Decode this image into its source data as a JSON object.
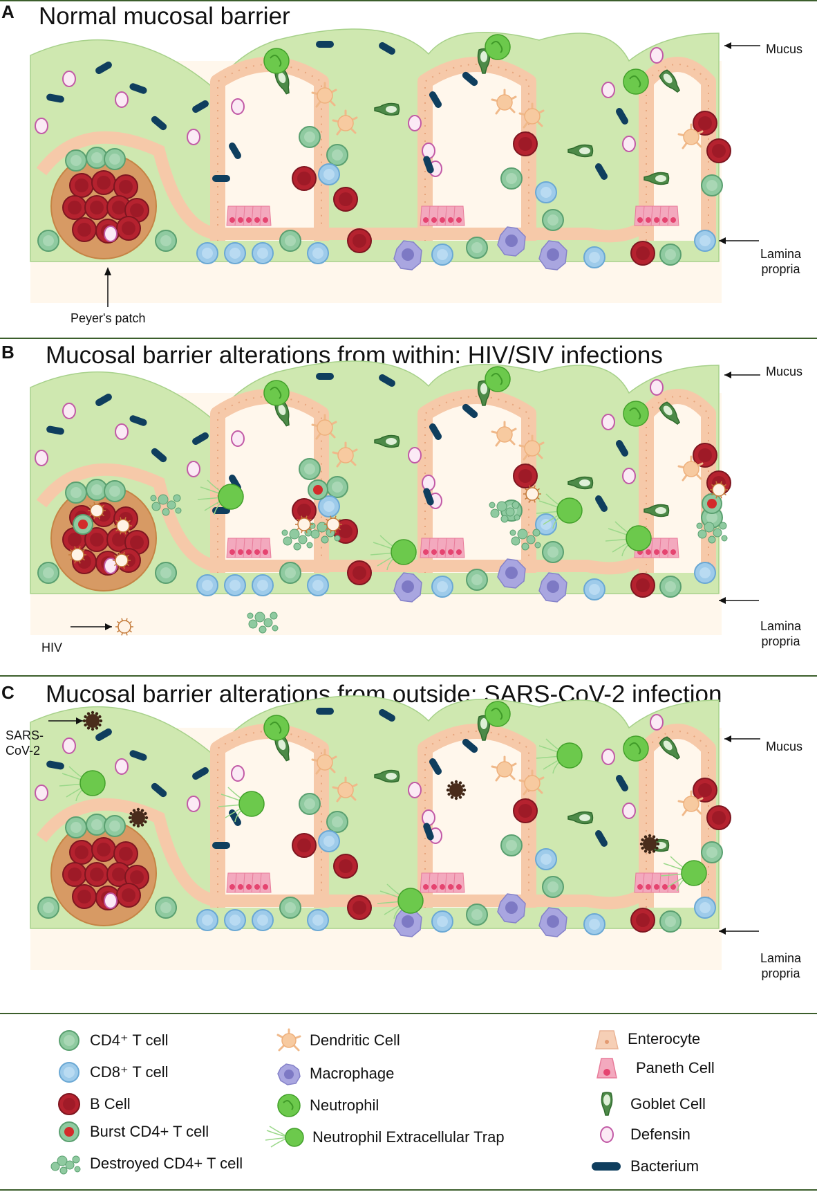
{
  "panels": [
    {
      "letter": "A",
      "title": "Normal mucosal barrier",
      "labels": {
        "mucus": "Mucus",
        "lamina1": "Lamina",
        "lamina2": "propria",
        "extra": "Peyer's patch"
      }
    },
    {
      "letter": "B",
      "title": "Mucosal barrier alterations from within: HIV/SIV infections",
      "labels": {
        "mucus": "Mucus",
        "lamina1": "Lamina",
        "lamina2": "propria",
        "extra": "HIV"
      }
    },
    {
      "letter": "C",
      "title": "Mucosal barrier alterations from outside: SARS-CoV-2 infection",
      "labels": {
        "mucus": "Mucus",
        "lamina1": "Lamina",
        "lamina2": "propria",
        "extra1": "SARS-",
        "extra2": "CoV-2"
      }
    }
  ],
  "legend": [
    {
      "label": "CD4⁺ T cell",
      "icon": "cd4-t-cell-icon",
      "color": "#8fcaa0"
    },
    {
      "label": "CD8⁺ T cell",
      "icon": "cd8-t-cell-icon",
      "color": "#9ecbea"
    },
    {
      "label": "B Cell",
      "icon": "b-cell-icon",
      "color": "#b5222f"
    },
    {
      "label": "Burst CD4+ T cell",
      "icon": "burst-cd4-t-cell-icon",
      "color": "#d32b2b"
    },
    {
      "label": "Destroyed CD4+ T cell",
      "icon": "destroyed-cd4-t-cell-icon",
      "color": "#8fcaa0"
    },
    {
      "label": "Dendritic Cell",
      "icon": "dendritic-cell-icon",
      "color": "#f7caa0"
    },
    {
      "label": "Macrophage",
      "icon": "macrophage-icon",
      "color": "#a9a6e0"
    },
    {
      "label": "Neutrophil",
      "icon": "neutrophil-icon",
      "color": "#6cc94c"
    },
    {
      "label": "Neutrophil Extracellular Trap",
      "icon": "net-icon",
      "color": "#9bd88a"
    },
    {
      "label": "Enterocyte",
      "icon": "enterocyte-icon",
      "color": "#f6cfb6"
    },
    {
      "label": "Paneth Cell",
      "icon": "paneth-cell-icon",
      "color": "#ef7d9e"
    },
    {
      "label": "Goblet Cell",
      "icon": "goblet-cell-icon",
      "color": "#4d8a48"
    },
    {
      "label": "Defensin",
      "icon": "defensin-icon",
      "color": "#e3a5d8"
    },
    {
      "label": "Bacterium",
      "icon": "bacterium-icon",
      "color": "#0f3e5e"
    }
  ],
  "colors": {
    "mucus": "#cfe8b0",
    "lamina": "#fff7ec",
    "epithelium": "#f6c9a9",
    "divider": "#3b5e2b"
  }
}
